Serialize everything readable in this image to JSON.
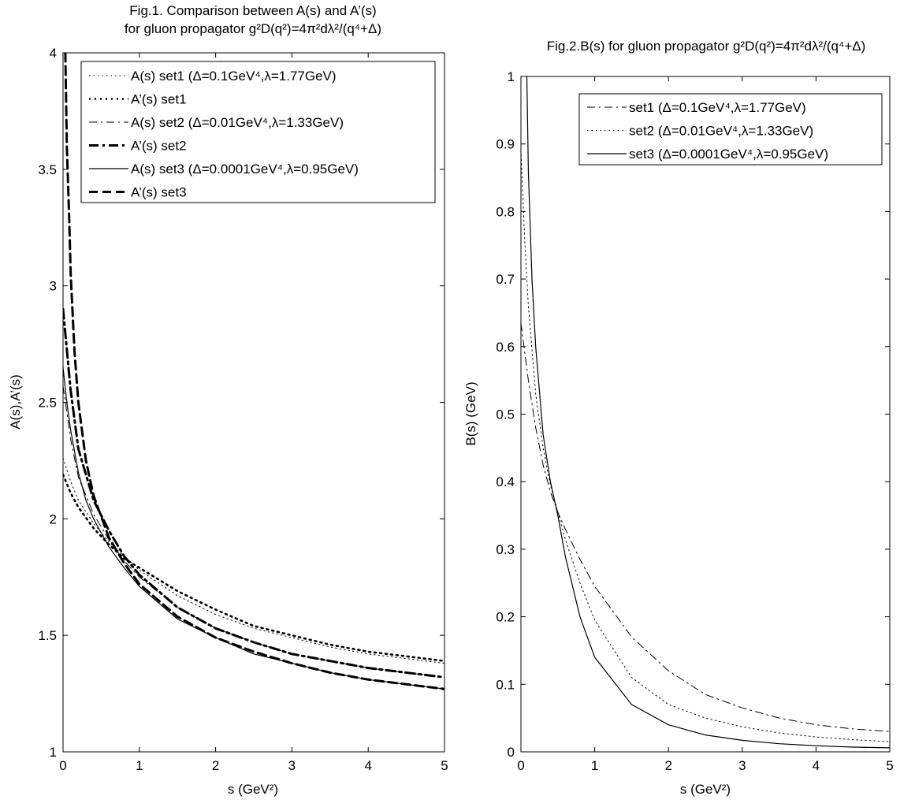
{
  "chart_data": [
    {
      "type": "line",
      "title": "Fig.1. Comparison between A(s) and A’(s)",
      "subtitle": "for gluon propagator g²D(q²)=4π²dλ²/(q⁴+Δ)",
      "xlabel": "s (GeV²)",
      "ylabel": "A(s),A’(s)",
      "xlim": [
        0,
        5
      ],
      "ylim": [
        1,
        4
      ],
      "xticks": [
        "0",
        "1",
        "2",
        "3",
        "4",
        "5"
      ],
      "yticks": [
        "1",
        "1.5",
        "2",
        "2.5",
        "3",
        "3.5",
        "4"
      ],
      "grid": false,
      "legend_position": "top-right",
      "series": [
        {
          "name": "A(s) set1 (Δ=0.1GeV⁴,λ=1.77GeV)",
          "style": "dotted-thin",
          "x": [
            0,
            0.1,
            0.2,
            0.4,
            0.6,
            0.8,
            1.0,
            1.5,
            2.0,
            2.5,
            3.0,
            3.5,
            4.0,
            4.5,
            5.0
          ],
          "y": [
            2.26,
            2.16,
            2.08,
            1.98,
            1.9,
            1.84,
            1.78,
            1.67,
            1.59,
            1.53,
            1.49,
            1.45,
            1.42,
            1.4,
            1.38
          ]
        },
        {
          "name": "A’(s) set1",
          "style": "dotted-thick",
          "x": [
            0,
            0.1,
            0.2,
            0.4,
            0.6,
            0.8,
            1.0,
            1.5,
            2.0,
            2.5,
            3.0,
            3.5,
            4.0,
            4.5,
            5.0
          ],
          "y": [
            2.19,
            2.11,
            2.05,
            1.96,
            1.89,
            1.83,
            1.79,
            1.69,
            1.61,
            1.54,
            1.5,
            1.46,
            1.43,
            1.41,
            1.39
          ]
        },
        {
          "name": "A(s) set2 (Δ=0.01GeV⁴,λ=1.33GeV)",
          "style": "dashdot-thin",
          "x": [
            0,
            0.1,
            0.2,
            0.4,
            0.6,
            0.8,
            1.0,
            1.5,
            2.0,
            2.5,
            3.0,
            3.5,
            4.0,
            4.5,
            5.0
          ],
          "y": [
            2.57,
            2.34,
            2.18,
            2.02,
            1.91,
            1.82,
            1.75,
            1.62,
            1.53,
            1.47,
            1.42,
            1.39,
            1.36,
            1.34,
            1.32
          ]
        },
        {
          "name": "A’(s) set2",
          "style": "dashdot-thick",
          "x": [
            0,
            0.1,
            0.2,
            0.4,
            0.6,
            0.8,
            1.0,
            1.5,
            2.0,
            2.5,
            3.0,
            3.5,
            4.0,
            4.5,
            5.0
          ],
          "y": [
            2.9,
            2.55,
            2.3,
            2.08,
            1.95,
            1.84,
            1.76,
            1.62,
            1.53,
            1.47,
            1.42,
            1.39,
            1.36,
            1.34,
            1.32
          ]
        },
        {
          "name": "A(s) set3 (Δ=0.0001GeV⁴,λ=0.95GeV)",
          "style": "solid-thin",
          "x": [
            0,
            0.05,
            0.1,
            0.2,
            0.3,
            0.4,
            0.6,
            0.8,
            1.0,
            1.5,
            2.0,
            2.5,
            3.0,
            3.5,
            4.0,
            4.5,
            5.0
          ],
          "y": [
            2.65,
            2.5,
            2.38,
            2.2,
            2.08,
            2.0,
            1.88,
            1.79,
            1.71,
            1.57,
            1.49,
            1.42,
            1.38,
            1.34,
            1.31,
            1.29,
            1.27
          ]
        },
        {
          "name": "A’(s) set3",
          "style": "dashed-thick",
          "x": [
            0.03,
            0.05,
            0.08,
            0.1,
            0.15,
            0.2,
            0.3,
            0.4,
            0.6,
            0.8,
            1.0,
            1.5,
            2.0,
            2.5,
            3.0,
            3.5,
            4.0,
            4.5,
            5.0
          ],
          "y": [
            4.0,
            3.6,
            3.3,
            3.05,
            2.72,
            2.5,
            2.25,
            2.1,
            1.92,
            1.81,
            1.72,
            1.58,
            1.49,
            1.43,
            1.38,
            1.34,
            1.31,
            1.29,
            1.27
          ]
        }
      ]
    },
    {
      "type": "line",
      "title": "Fig.2.B(s) for gluon propagator g²D(q²)=4π²dλ²/(q⁴+Δ)",
      "xlabel": "s (GeV²)",
      "ylabel": "B(s) (GeV)",
      "xlim": [
        0,
        5
      ],
      "ylim": [
        0,
        1
      ],
      "xticks": [
        "0",
        "1",
        "2",
        "3",
        "4",
        "5"
      ],
      "yticks": [
        "0",
        "0.1",
        "0.2",
        "0.3",
        "0.4",
        "0.5",
        "0.6",
        "0.7",
        "0.8",
        "0.9",
        "1"
      ],
      "grid": false,
      "legend_position": "top-right",
      "series": [
        {
          "name": "set1 (Δ=0.1GeV⁴,λ=1.77GeV)",
          "style": "dashdot-thin",
          "x": [
            0,
            0.1,
            0.2,
            0.3,
            0.4,
            0.5,
            0.6,
            0.8,
            1.0,
            1.5,
            2.0,
            2.5,
            3.0,
            3.5,
            4.0,
            4.5,
            5.0
          ],
          "y": [
            0.635,
            0.55,
            0.48,
            0.425,
            0.385,
            0.355,
            0.33,
            0.285,
            0.245,
            0.17,
            0.12,
            0.085,
            0.065,
            0.05,
            0.04,
            0.034,
            0.03
          ]
        },
        {
          "name": "set2 (Δ=0.01GeV⁴,λ=1.33GeV)",
          "style": "dotted-thin",
          "x": [
            0,
            0.05,
            0.1,
            0.2,
            0.3,
            0.4,
            0.5,
            0.6,
            0.8,
            1.0,
            1.5,
            2.0,
            2.5,
            3.0,
            3.5,
            4.0,
            4.5,
            5.0
          ],
          "y": [
            0.89,
            0.76,
            0.66,
            0.53,
            0.45,
            0.395,
            0.355,
            0.315,
            0.25,
            0.195,
            0.11,
            0.07,
            0.05,
            0.037,
            0.028,
            0.022,
            0.018,
            0.015
          ]
        },
        {
          "name": "set3 (Δ=0.0001GeV⁴,λ=0.95GeV)",
          "style": "solid-thin",
          "x": [
            0.08,
            0.1,
            0.15,
            0.2,
            0.3,
            0.4,
            0.5,
            0.6,
            0.8,
            1.0,
            1.5,
            2.0,
            2.5,
            3.0,
            3.5,
            4.0,
            4.5,
            5.0
          ],
          "y": [
            1.0,
            0.86,
            0.7,
            0.6,
            0.47,
            0.4,
            0.35,
            0.29,
            0.2,
            0.14,
            0.07,
            0.04,
            0.025,
            0.017,
            0.012,
            0.009,
            0.007,
            0.006
          ]
        }
      ]
    }
  ]
}
